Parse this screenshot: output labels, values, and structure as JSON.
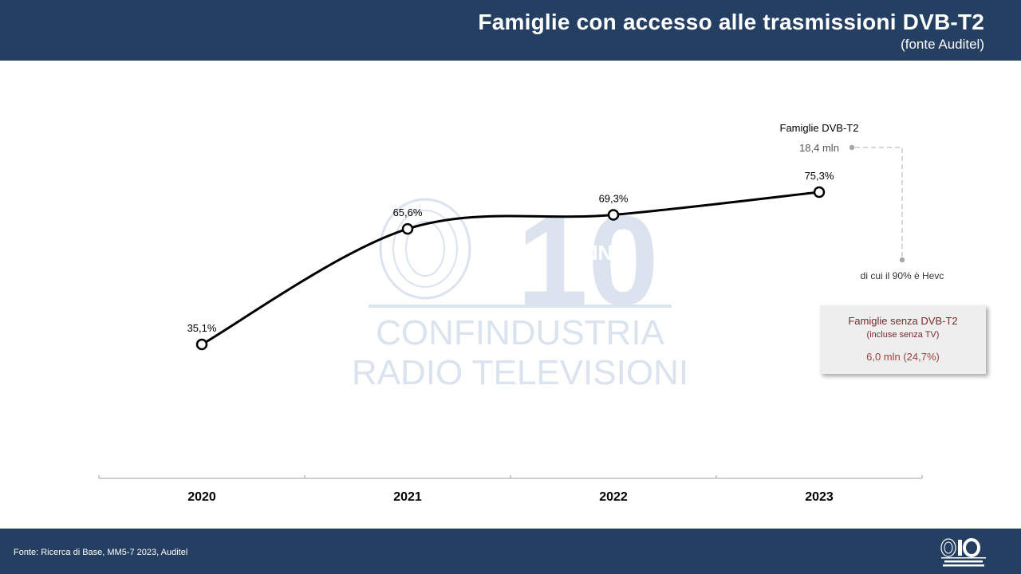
{
  "header": {
    "title": "Famiglie con accesso alle trasmissioni DVB-T2",
    "subtitle": "(fonte Auditel)"
  },
  "annotations": {
    "dvbt2_label": "Famiglie DVB-T2",
    "dvbt2_value": "18,4 mln",
    "hevc_note": "di cui il 90% è Hevc"
  },
  "side_box": {
    "title": "Famiglie senza DVB-T2",
    "subtitle": "(incluse senza TV)",
    "value": "6,0 mln (24,7%)"
  },
  "watermark": {
    "top": "10",
    "badge": "ANNI",
    "line1": "CONFINDUSTRIA",
    "line2": "RADIO TELEVISIONI"
  },
  "footer": {
    "source": "Fonte: Ricerca di Base, MM5-7 2023, Auditel"
  },
  "colors": {
    "header_bg": "#243f61",
    "line": "#000000",
    "watermark": "#dbe3ef",
    "side_box_text": "#7a2a2a"
  },
  "chart_data": {
    "type": "line",
    "categories": [
      "2020",
      "2021",
      "2022",
      "2023"
    ],
    "series": [
      {
        "values": [
          35.1,
          65.6,
          69.3,
          75.3
        ]
      }
    ],
    "data_labels": [
      "35,1%",
      "65,6%",
      "69,3%",
      "75,3%"
    ],
    "title": "Famiglie con accesso alle trasmissioni DVB-T2",
    "xlabel": "",
    "ylabel": "",
    "ylim": [
      0,
      100
    ],
    "grid": false,
    "smooth": true
  }
}
